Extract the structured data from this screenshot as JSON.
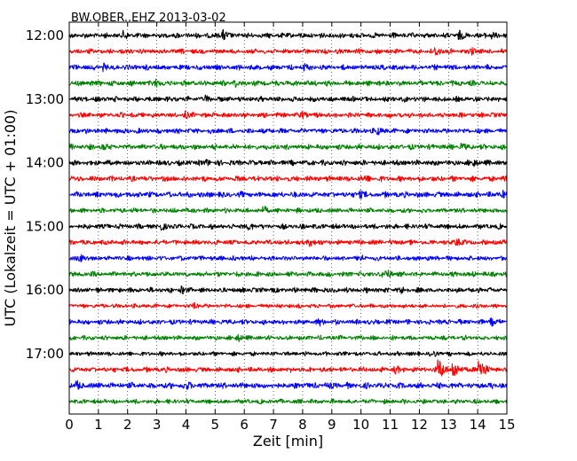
{
  "chart_data": {
    "type": "line",
    "title": "BW.OBER..EHZ 2013-03-02",
    "xlabel": "Zeit  [min]",
    "ylabel": "UTC (Lokalzeit = UTC + 01:00)",
    "xlim": [
      0,
      15
    ],
    "x_ticks": [
      "0",
      "1",
      "2",
      "3",
      "4",
      "5",
      "6",
      "7",
      "8",
      "9",
      "10",
      "11",
      "12",
      "13",
      "14",
      "15"
    ],
    "y_tick_labels": [
      "12:00",
      "13:00",
      "14:00",
      "15:00",
      "16:00",
      "17:00"
    ],
    "trace_interval_minutes": 15,
    "start_time": "12:00",
    "color_cycle": [
      "#000000",
      "#ff0000",
      "#0000ff",
      "#008000"
    ],
    "grid_x": "dotted",
    "traces": [
      {
        "start": "12:00",
        "color": "#000000",
        "noise": 3.5,
        "events": [
          {
            "t": 1.9,
            "a": 6
          },
          {
            "t": 5.3,
            "a": 7
          },
          {
            "t": 13.4,
            "a": 6
          },
          {
            "t": 14.5,
            "a": 5
          }
        ]
      },
      {
        "start": "12:15",
        "color": "#ff0000",
        "noise": 3.2,
        "events": [
          {
            "t": 12.6,
            "a": 6
          },
          {
            "t": 13.8,
            "a": 5
          }
        ]
      },
      {
        "start": "12:30",
        "color": "#0000ff",
        "noise": 3.5,
        "events": [
          {
            "t": 1.2,
            "a": 5
          },
          {
            "t": 8.1,
            "a": 5
          }
        ]
      },
      {
        "start": "12:45",
        "color": "#008000",
        "noise": 3.6,
        "events": [
          {
            "t": 3.0,
            "a": 5
          },
          {
            "t": 5.7,
            "a": 5
          }
        ]
      },
      {
        "start": "13:00",
        "color": "#000000",
        "noise": 3.5,
        "events": [
          {
            "t": 4.7,
            "a": 5
          }
        ]
      },
      {
        "start": "13:15",
        "color": "#ff0000",
        "noise": 3.3,
        "events": [
          {
            "t": 4.0,
            "a": 5
          },
          {
            "t": 8.0,
            "a": 5
          }
        ]
      },
      {
        "start": "13:30",
        "color": "#0000ff",
        "noise": 3.4,
        "events": [
          {
            "t": 10.6,
            "a": 5
          }
        ]
      },
      {
        "start": "13:45",
        "color": "#008000",
        "noise": 3.6,
        "events": [
          {
            "t": 1.2,
            "a": 5
          },
          {
            "t": 13.5,
            "a": 5
          }
        ]
      },
      {
        "start": "14:00",
        "color": "#000000",
        "noise": 3.6,
        "events": [
          {
            "t": 4.7,
            "a": 5
          },
          {
            "t": 13.9,
            "a": 5
          }
        ]
      },
      {
        "start": "14:15",
        "color": "#ff0000",
        "noise": 3.6,
        "events": [
          {
            "t": 10.2,
            "a": 5
          },
          {
            "t": 14.9,
            "a": 5
          }
        ]
      },
      {
        "start": "14:30",
        "color": "#0000ff",
        "noise": 3.8,
        "events": [
          {
            "t": 10.0,
            "a": 5
          },
          {
            "t": 14.9,
            "a": 5
          }
        ]
      },
      {
        "start": "14:45",
        "color": "#008000",
        "noise": 3.2,
        "events": [
          {
            "t": 6.7,
            "a": 5
          }
        ]
      },
      {
        "start": "15:00",
        "color": "#000000",
        "noise": 3.4,
        "events": [
          {
            "t": 3.2,
            "a": 5
          },
          {
            "t": 6.2,
            "a": 5
          }
        ]
      },
      {
        "start": "15:15",
        "color": "#ff0000",
        "noise": 3.3,
        "events": [
          {
            "t": 8.3,
            "a": 5
          },
          {
            "t": 13.3,
            "a": 5
          }
        ]
      },
      {
        "start": "15:30",
        "color": "#0000ff",
        "noise": 3.2,
        "events": [
          {
            "t": 0.4,
            "a": 5
          },
          {
            "t": 10.0,
            "a": 5
          }
        ]
      },
      {
        "start": "15:45",
        "color": "#008000",
        "noise": 3.4,
        "events": [
          {
            "t": 10.9,
            "a": 6
          }
        ]
      },
      {
        "start": "16:00",
        "color": "#000000",
        "noise": 3.4,
        "events": [
          {
            "t": 3.9,
            "a": 5
          },
          {
            "t": 11.4,
            "a": 5
          }
        ]
      },
      {
        "start": "16:15",
        "color": "#ff0000",
        "noise": 2.8,
        "events": [
          {
            "t": 4.3,
            "a": 4
          }
        ]
      },
      {
        "start": "16:30",
        "color": "#0000ff",
        "noise": 3.3,
        "events": [
          {
            "t": 8.6,
            "a": 5
          },
          {
            "t": 14.5,
            "a": 5
          }
        ]
      },
      {
        "start": "16:45",
        "color": "#008000",
        "noise": 3.0,
        "events": [
          {
            "t": 5.8,
            "a": 5
          }
        ]
      },
      {
        "start": "17:00",
        "color": "#000000",
        "noise": 2.8,
        "events": [
          {
            "t": 12.5,
            "a": 4
          }
        ]
      },
      {
        "start": "17:15",
        "color": "#ff0000",
        "noise": 3.4,
        "events": [
          {
            "t": 11.2,
            "a": 6
          },
          {
            "t": 12.7,
            "a": 12
          },
          {
            "t": 13.2,
            "a": 10
          },
          {
            "t": 14.1,
            "a": 13
          }
        ]
      },
      {
        "start": "17:30",
        "color": "#0000ff",
        "noise": 4.0,
        "events": [
          {
            "t": 0.3,
            "a": 6
          },
          {
            "t": 4.1,
            "a": 5
          },
          {
            "t": 9.0,
            "a": 4
          }
        ]
      },
      {
        "start": "17:45",
        "color": "#008000",
        "noise": 3.0,
        "events": []
      }
    ]
  }
}
